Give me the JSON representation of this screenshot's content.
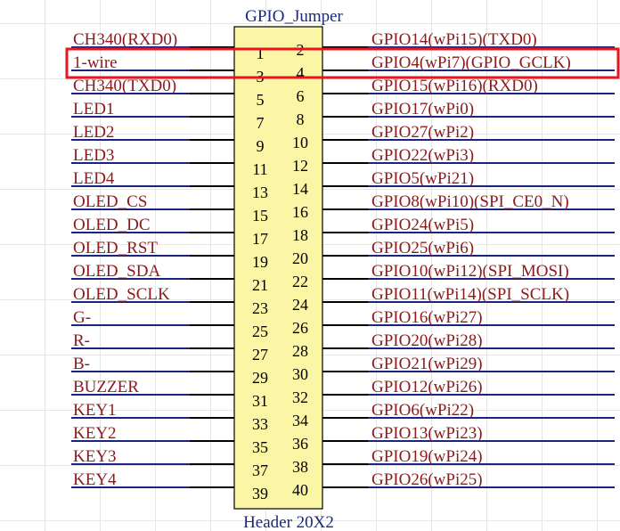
{
  "component": {
    "title": "GPIO_Jumper",
    "footer": "Header 20X2"
  },
  "colors": {
    "body_fill": "#fbf5a6",
    "wire": "#1a237e",
    "pin_line": "#000000",
    "label": "#8b1a1a",
    "highlight": "#e8141e"
  },
  "highlight_row": 1,
  "rows": [
    {
      "left": "CH340(RXD0)",
      "pin_left": "1",
      "pin_right": "2",
      "right": "GPIO14(wPi15)(TXD0)"
    },
    {
      "left": "1-wire",
      "pin_left": "3",
      "pin_right": "4",
      "right": "GPIO4(wPi7)(GPIO_GCLK)"
    },
    {
      "left": "CH340(TXD0)",
      "pin_left": "5",
      "pin_right": "6",
      "right": "GPIO15(wPi16)(RXD0)"
    },
    {
      "left": "LED1",
      "pin_left": "7",
      "pin_right": "8",
      "right": "GPIO17(wPi0)"
    },
    {
      "left": "LED2",
      "pin_left": "9",
      "pin_right": "10",
      "right": "GPIO27(wPi2)"
    },
    {
      "left": "LED3",
      "pin_left": "11",
      "pin_right": "12",
      "right": "GPIO22(wPi3)"
    },
    {
      "left": "LED4",
      "pin_left": "13",
      "pin_right": "14",
      "right": "GPIO5(wPi21)"
    },
    {
      "left": "OLED_CS",
      "pin_left": "15",
      "pin_right": "16",
      "right": "GPIO8(wPi10)(SPI_CE0_N)"
    },
    {
      "left": "OLED_DC",
      "pin_left": "17",
      "pin_right": "18",
      "right": "GPIO24(wPi5)"
    },
    {
      "left": "OLED_RST",
      "pin_left": "19",
      "pin_right": "20",
      "right": "GPIO25(wPi6)"
    },
    {
      "left": "OLED_SDA",
      "pin_left": "21",
      "pin_right": "22",
      "right": "GPIO10(wPi12)(SPI_MOSI)"
    },
    {
      "left": "OLED_SCLK",
      "pin_left": "23",
      "pin_right": "24",
      "right": "GPIO11(wPi14)(SPI_SCLK)"
    },
    {
      "left": "G-",
      "pin_left": "25",
      "pin_right": "26",
      "right": "GPIO16(wPi27)"
    },
    {
      "left": "R-",
      "pin_left": "27",
      "pin_right": "28",
      "right": "GPIO20(wPi28)"
    },
    {
      "left": "B-",
      "pin_left": "29",
      "pin_right": "30",
      "right": "GPIO21(wPi29)"
    },
    {
      "left": "BUZZER",
      "pin_left": "31",
      "pin_right": "32",
      "right": "GPIO12(wPi26)"
    },
    {
      "left": "KEY1",
      "pin_left": "33",
      "pin_right": "34",
      "right": "GPIO6(wPi22)"
    },
    {
      "left": "KEY2",
      "pin_left": "35",
      "pin_right": "36",
      "right": "GPIO13(wPi23)"
    },
    {
      "left": "KEY3",
      "pin_left": "37",
      "pin_right": "38",
      "right": "GPIO19(wPi24)"
    },
    {
      "left": "KEY4",
      "pin_left": "39",
      "pin_right": "40",
      "right": "GPIO26(wPi25)"
    }
  ]
}
